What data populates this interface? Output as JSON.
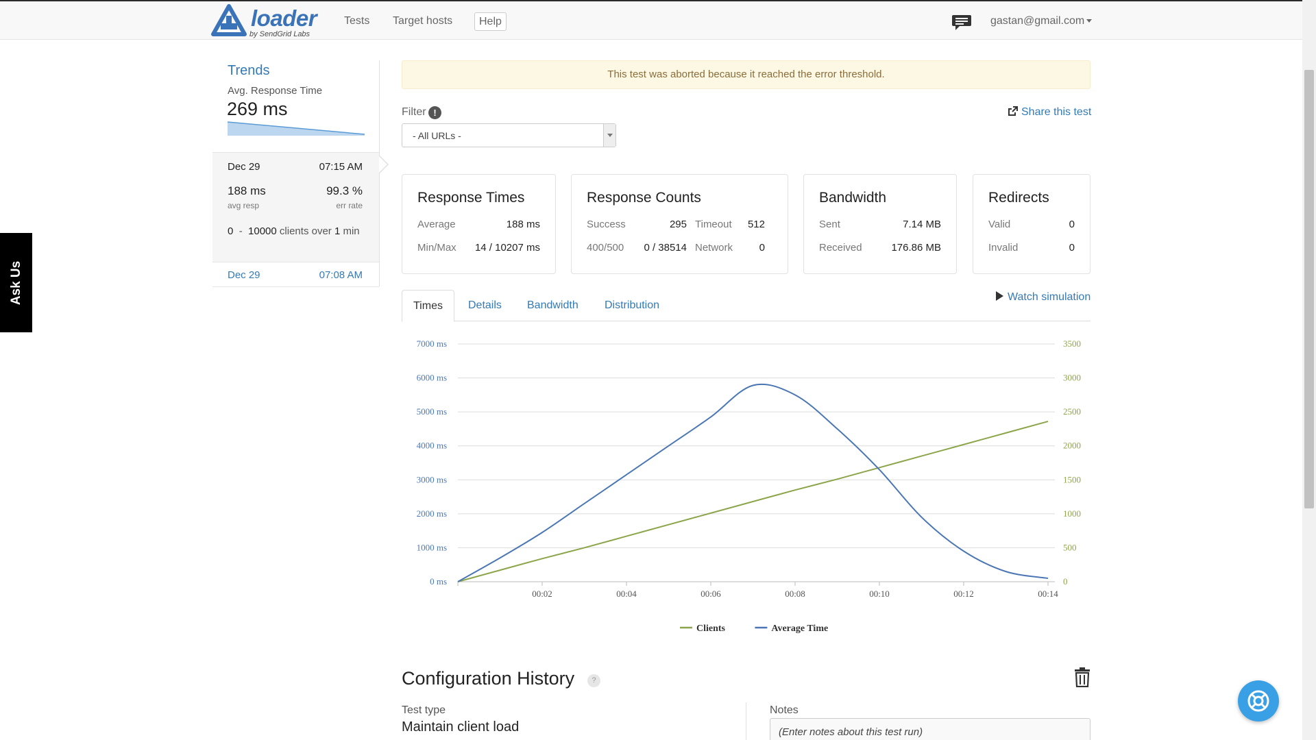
{
  "header": {
    "logo_word": "loader",
    "logo_sub": "by SendGrid Labs",
    "nav": [
      "Tests",
      "Target hosts",
      "Help"
    ],
    "chat_icon": "message-icon",
    "user_email": "gastan@gmail.com"
  },
  "ask_us": "Ask Us",
  "sidebar": {
    "title": "Trends",
    "subtitle": "Avg. Response Time",
    "value": "269 ms",
    "active_run": {
      "date": "Dec 29",
      "time": "07:15 AM",
      "avg": "188 ms",
      "avg_label": "avg resp",
      "err": "99.3 %",
      "err_label": "err rate",
      "clients_from": "0",
      "clients_sep": "-",
      "clients_to": "10000",
      "clients_tail": "clients over",
      "duration": "1",
      "duration_unit": "min"
    },
    "other_run": {
      "date": "Dec 29",
      "time": "07:08 AM"
    }
  },
  "alert": "This test was aborted because it reached the error threshold.",
  "filter": {
    "label": "Filter",
    "info": "!",
    "value": "- All URLs -"
  },
  "share": "Share this test",
  "cards": {
    "response_times": {
      "title": "Response Times",
      "avg_label": "Average",
      "avg": "188 ms",
      "minmax_label": "Min/Max",
      "minmax": "14 / 10207 ms"
    },
    "response_counts": {
      "title": "Response Counts",
      "success_label": "Success",
      "success": "295",
      "timeout_label": "Timeout",
      "timeout": "512",
      "err_label": "400/500",
      "err": "0 / 38514",
      "network_label": "Network",
      "network": "0"
    },
    "bandwidth": {
      "title": "Bandwidth",
      "sent_label": "Sent",
      "sent": "7.14 MB",
      "received_label": "Received",
      "received": "176.86 MB"
    },
    "redirects": {
      "title": "Redirects",
      "valid_label": "Valid",
      "valid": "0",
      "invalid_label": "Invalid",
      "invalid": "0"
    }
  },
  "tabs": [
    "Times",
    "Details",
    "Bandwidth",
    "Distribution"
  ],
  "watch_simulation": "Watch simulation",
  "chart_data": {
    "type": "line",
    "x": [
      "00:00",
      "00:01",
      "00:02",
      "00:03",
      "00:04",
      "00:05",
      "00:06",
      "00:07",
      "00:08",
      "00:09",
      "00:10",
      "00:11",
      "00:12",
      "00:13",
      "00:14"
    ],
    "xticks": [
      "00:02",
      "00:04",
      "00:06",
      "00:08",
      "00:10",
      "00:12",
      "00:14"
    ],
    "yleft_ticks": [
      "0 ms",
      "1000 ms",
      "2000 ms",
      "3000 ms",
      "4000 ms",
      "5000 ms",
      "6000 ms",
      "7000 ms"
    ],
    "yright_ticks": [
      "0",
      "500",
      "1000",
      "1500",
      "2000",
      "2500",
      "3000",
      "3500"
    ],
    "ylim_left": [
      0,
      7000
    ],
    "ylim_right": [
      0,
      3500
    ],
    "series": [
      {
        "name": "Clients",
        "axis": "right",
        "color": "#8ca54a",
        "values": [
          0,
          170,
          340,
          500,
          670,
          840,
          1010,
          1180,
          1350,
          1510,
          1680,
          1850,
          2020,
          2190,
          2360
        ]
      },
      {
        "name": "Average Time",
        "axis": "left",
        "color": "#4a77b4",
        "values": [
          0,
          700,
          1450,
          2300,
          3150,
          4000,
          4850,
          5780,
          5500,
          4500,
          3300,
          1900,
          900,
          300,
          100
        ]
      }
    ],
    "grid": true,
    "legend": "bottom"
  },
  "config": {
    "title": "Configuration History",
    "help": "?",
    "test_type_label": "Test type",
    "test_type": "Maintain client load",
    "notes_label": "Notes",
    "notes_placeholder": "(Enter notes about this test run)"
  }
}
